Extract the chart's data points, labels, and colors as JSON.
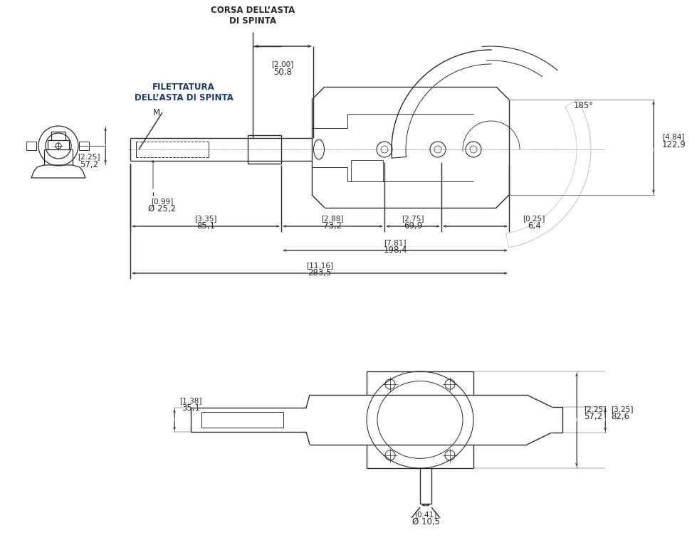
{
  "bg_color": "#ffffff",
  "line_color": "#2a2a2a",
  "dim_color": "#2a2a2a",
  "label_color": "#1a3a6e",
  "figsize": [
    9.72,
    7.66
  ],
  "dpi": 100,
  "texts": {
    "corsa": "CORSA DELL’ASTA\nDI SPINTA",
    "filettatura": "FILETTATURA\nDELL’ASTA DI SPINTA",
    "M": "M",
    "d200": "[2.00]",
    "d200v": "50,8",
    "d484": "[4.84]",
    "d484v": "122,9",
    "d185": "185°",
    "d099": "[0.99]",
    "d099v": "Ø 25,2",
    "d335": "[3.35]",
    "d335v": "85,1",
    "d288": "[2.88]",
    "d288v": "73,2",
    "d275": "[2.75]",
    "d275v": "69,9",
    "d025": "[0.25]",
    "d025v": "6,4",
    "d781": "[7.81]",
    "d781v": "198,4",
    "d1116": "[11.16]",
    "d1116v": "283,5",
    "d225side": "[2.25]",
    "d225sidev": "57,2",
    "d138": "[1.38]",
    "d138v": "35,1",
    "d225b": "[2.25]",
    "d225bv": "57,2",
    "d325": "[3.25]",
    "d325v": "82,6",
    "d041": "[0.41]",
    "d041v": "Ø 10,5"
  }
}
